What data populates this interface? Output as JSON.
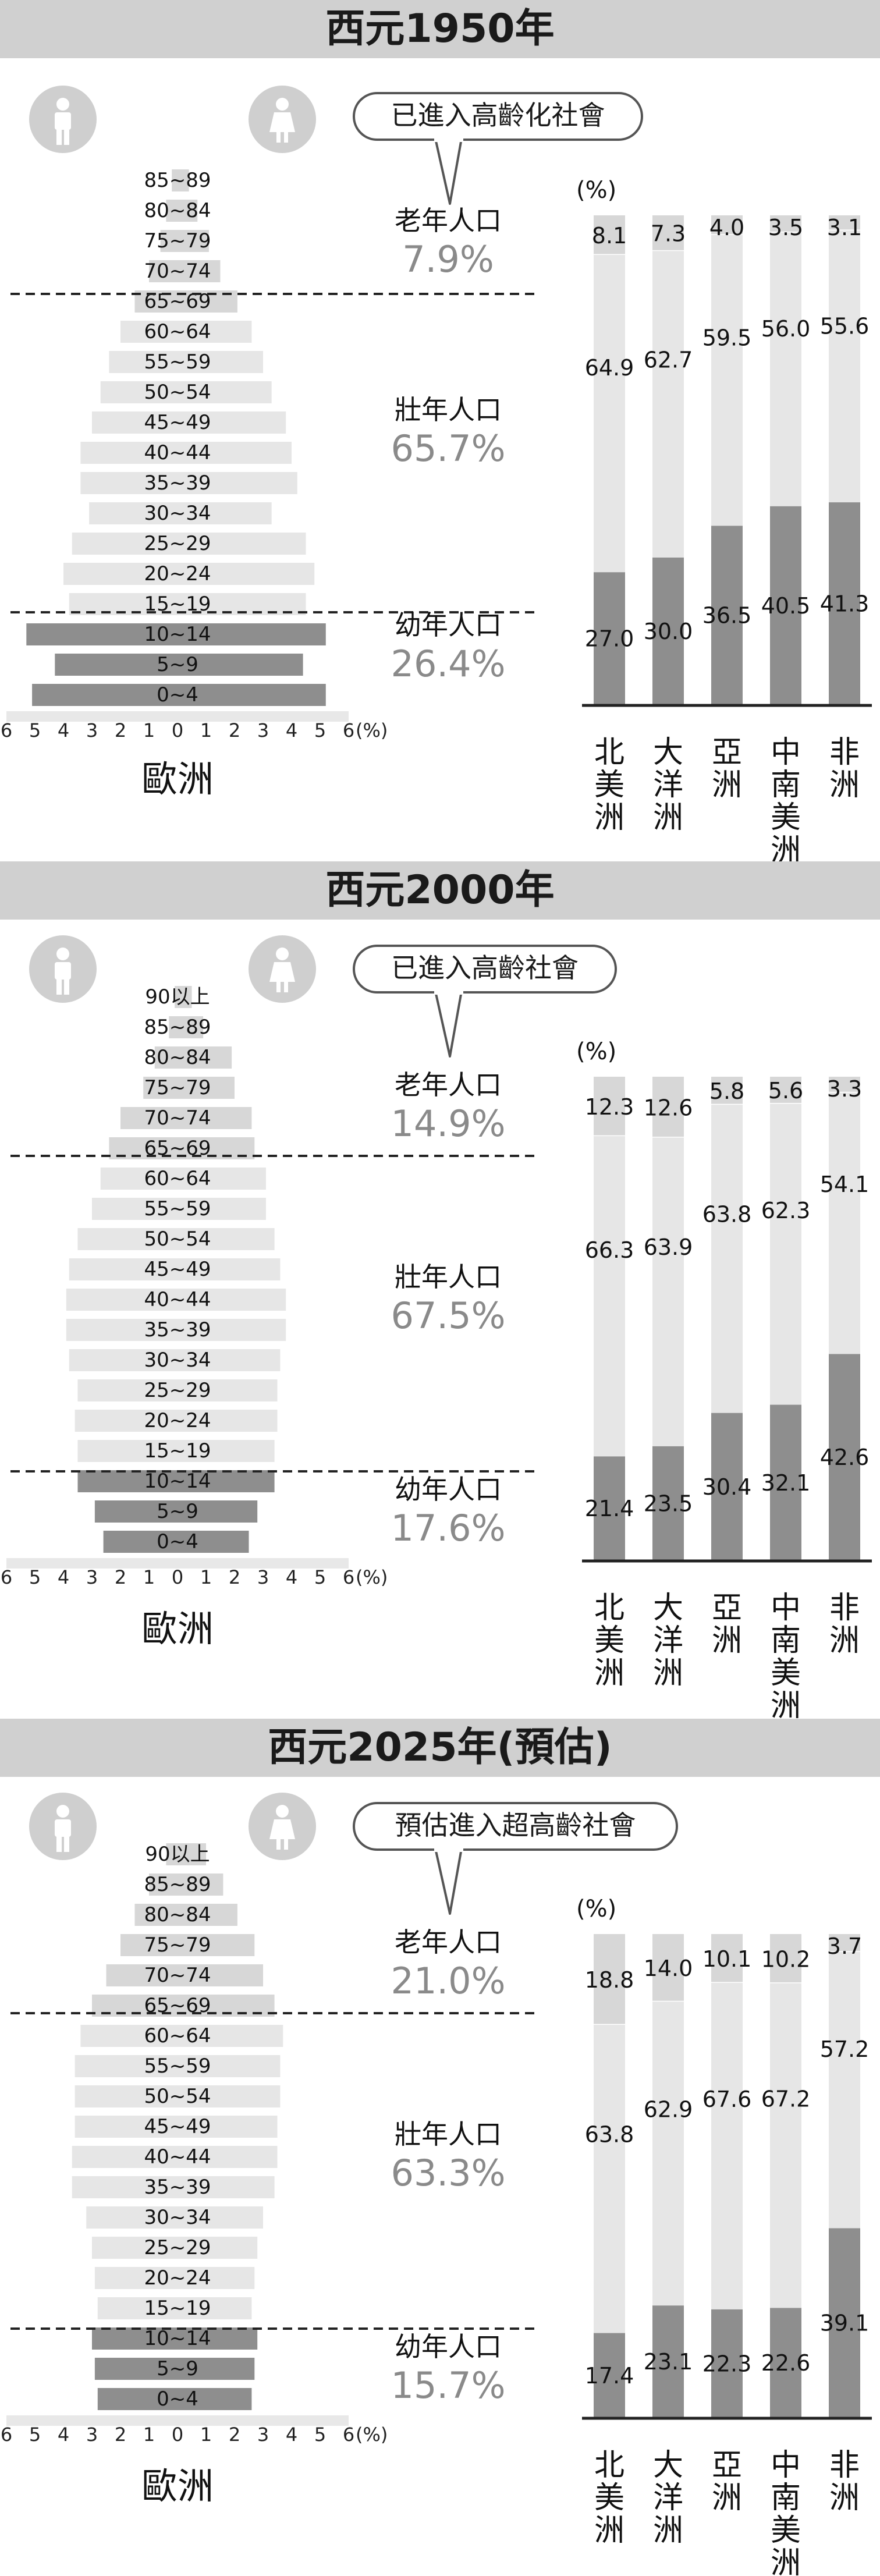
{
  "colors": {
    "banner": "#d0d0d0",
    "old_segment": "#d7d7d7",
    "working_segment": "#e6e6e6",
    "young_segment": "#8e8e8e",
    "percent_text": "#8a8a8a"
  },
  "icons": [
    "male-icon",
    "female-icon",
    "speech-bubble"
  ],
  "sections": [
    {
      "title": "西元1950年",
      "callout": "已進入高齡化社會",
      "groups": [
        {
          "label": "老年人口",
          "value": "7.9%"
        },
        {
          "label": "壯年人口",
          "value": "65.7%"
        },
        {
          "label": "幼年人口",
          "value": "26.4%"
        }
      ],
      "pyramid_region": "歐洲",
      "pyramid_unit": "(%)",
      "axis_ticks": [
        "6",
        "5",
        "4",
        "3",
        "2",
        "1",
        "0",
        "1",
        "2",
        "3",
        "4",
        "5",
        "6"
      ],
      "stack_unit": "(%)"
    },
    {
      "title": "西元2000年",
      "callout": "已進入高齡社會",
      "groups": [
        {
          "label": "老年人口",
          "value": "14.9%"
        },
        {
          "label": "壯年人口",
          "value": "67.5%"
        },
        {
          "label": "幼年人口",
          "value": "17.6%"
        }
      ],
      "pyramid_region": "歐洲",
      "pyramid_unit": "(%)",
      "axis_ticks": [
        "6",
        "5",
        "4",
        "3",
        "2",
        "1",
        "0",
        "1",
        "2",
        "3",
        "4",
        "5",
        "6"
      ],
      "stack_unit": "(%)"
    },
    {
      "title": "西元2025年(預估)",
      "callout": "預估進入超高齡社會",
      "groups": [
        {
          "label": "老年人口",
          "value": "21.0%"
        },
        {
          "label": "壯年人口",
          "value": "63.3%"
        },
        {
          "label": "幼年人口",
          "value": "15.7%"
        }
      ],
      "pyramid_region": "歐洲",
      "pyramid_unit": "(%)",
      "axis_ticks": [
        "6",
        "5",
        "4",
        "3",
        "2",
        "1",
        "0",
        "1",
        "2",
        "3",
        "4",
        "5",
        "6"
      ],
      "stack_unit": "(%)"
    }
  ],
  "chart_data": [
    {
      "type": "bar",
      "subtype": "population-pyramid",
      "title": "西元1950年",
      "region": "歐洲",
      "categories": [
        "85~89",
        "80~84",
        "75~79",
        "70~74",
        "65~69",
        "60~64",
        "55~59",
        "50~54",
        "45~49",
        "40~44",
        "35~39",
        "30~34",
        "25~29",
        "20~24",
        "15~19",
        "10~14",
        "5~9",
        "0~4"
      ],
      "series": [
        {
          "name": "male",
          "values": [
            0.2,
            0.4,
            0.6,
            1.0,
            1.5,
            2.0,
            2.4,
            2.7,
            3.0,
            3.4,
            3.4,
            3.1,
            3.7,
            4.0,
            3.8,
            5.3,
            4.3,
            5.1
          ]
        },
        {
          "name": "female",
          "values": [
            0.4,
            0.7,
            1.1,
            1.5,
            2.1,
            2.6,
            3.0,
            3.3,
            3.8,
            4.0,
            4.2,
            3.3,
            4.5,
            4.8,
            4.5,
            5.2,
            4.4,
            5.2
          ]
        }
      ],
      "xlim": [
        -6,
        6
      ],
      "unit": "(%)"
    },
    {
      "type": "bar",
      "subtype": "stacked-100",
      "title": "西元1950年",
      "categories": [
        "北美洲",
        "大洋洲",
        "亞洲",
        "中南美洲",
        "非洲"
      ],
      "series": [
        {
          "name": "老年人口",
          "values": [
            8.1,
            7.3,
            4.0,
            3.5,
            3.1
          ]
        },
        {
          "name": "壯年人口",
          "values": [
            64.9,
            62.7,
            59.5,
            56.0,
            55.6
          ]
        },
        {
          "name": "幼年人口",
          "values": [
            27.0,
            30.0,
            36.5,
            40.5,
            41.3
          ]
        }
      ],
      "ylim": [
        0,
        100
      ],
      "unit": "(%)"
    },
    {
      "type": "bar",
      "subtype": "population-pyramid",
      "title": "西元2000年",
      "region": "歐洲",
      "categories": [
        "90以上",
        "85~89",
        "80~84",
        "75~79",
        "70~74",
        "65~69",
        "60~64",
        "55~59",
        "50~54",
        "45~49",
        "40~44",
        "35~39",
        "30~34",
        "25~29",
        "20~24",
        "15~19",
        "10~14",
        "5~9",
        "0~4"
      ],
      "series": [
        {
          "name": "male",
          "values": [
            0.1,
            0.3,
            0.8,
            1.2,
            2.0,
            2.4,
            2.7,
            3.0,
            3.5,
            3.8,
            3.9,
            3.9,
            3.8,
            3.5,
            3.6,
            3.5,
            3.5,
            2.9,
            2.6
          ]
        },
        {
          "name": "female",
          "values": [
            0.5,
            0.9,
            1.9,
            2.0,
            2.6,
            2.7,
            3.1,
            3.1,
            3.4,
            3.6,
            3.8,
            3.8,
            3.6,
            3.5,
            3.5,
            3.4,
            3.4,
            2.8,
            2.5
          ]
        }
      ],
      "xlim": [
        -6,
        6
      ],
      "unit": "(%)"
    },
    {
      "type": "bar",
      "subtype": "stacked-100",
      "title": "西元2000年",
      "categories": [
        "北美洲",
        "大洋洲",
        "亞洲",
        "中南美洲",
        "非洲"
      ],
      "series": [
        {
          "name": "老年人口",
          "values": [
            12.3,
            12.6,
            5.8,
            5.6,
            3.3
          ]
        },
        {
          "name": "壯年人口",
          "values": [
            66.3,
            63.9,
            63.8,
            62.3,
            54.1
          ]
        },
        {
          "name": "幼年人口",
          "values": [
            21.4,
            23.5,
            30.4,
            32.1,
            42.6
          ]
        }
      ],
      "ylim": [
        0,
        100
      ],
      "unit": "(%)"
    },
    {
      "type": "bar",
      "subtype": "population-pyramid",
      "title": "西元2025年(預估)",
      "region": "歐洲",
      "categories": [
        "90以上",
        "85~89",
        "80~84",
        "75~79",
        "70~74",
        "65~69",
        "60~64",
        "55~59",
        "50~54",
        "45~49",
        "40~44",
        "35~39",
        "30~34",
        "25~29",
        "20~24",
        "15~19",
        "10~14",
        "5~9",
        "0~4"
      ],
      "series": [
        {
          "name": "male",
          "values": [
            0.4,
            1.0,
            1.5,
            2.0,
            2.5,
            3.0,
            3.4,
            3.6,
            3.6,
            3.6,
            3.7,
            3.7,
            3.2,
            3.0,
            2.9,
            2.8,
            3.0,
            2.9,
            2.8
          ]
        },
        {
          "name": "female",
          "values": [
            1.0,
            1.6,
            2.1,
            2.7,
            3.0,
            3.4,
            3.7,
            3.6,
            3.6,
            3.5,
            3.5,
            3.4,
            3.0,
            2.8,
            2.7,
            2.6,
            2.8,
            2.7,
            2.6
          ]
        }
      ],
      "xlim": [
        -6,
        6
      ],
      "unit": "(%)"
    },
    {
      "type": "bar",
      "subtype": "stacked-100",
      "title": "西元2025年(預估)",
      "categories": [
        "北美洲",
        "大洋洲",
        "亞洲",
        "中南美洲",
        "非洲"
      ],
      "series": [
        {
          "name": "老年人口",
          "values": [
            18.8,
            14.0,
            10.1,
            10.2,
            3.7
          ]
        },
        {
          "name": "壯年人口",
          "values": [
            63.8,
            62.9,
            67.6,
            67.2,
            57.2
          ]
        },
        {
          "name": "幼年人口",
          "values": [
            17.4,
            23.1,
            22.3,
            22.6,
            39.1
          ]
        }
      ],
      "ylim": [
        0,
        100
      ],
      "unit": "(%)"
    }
  ]
}
